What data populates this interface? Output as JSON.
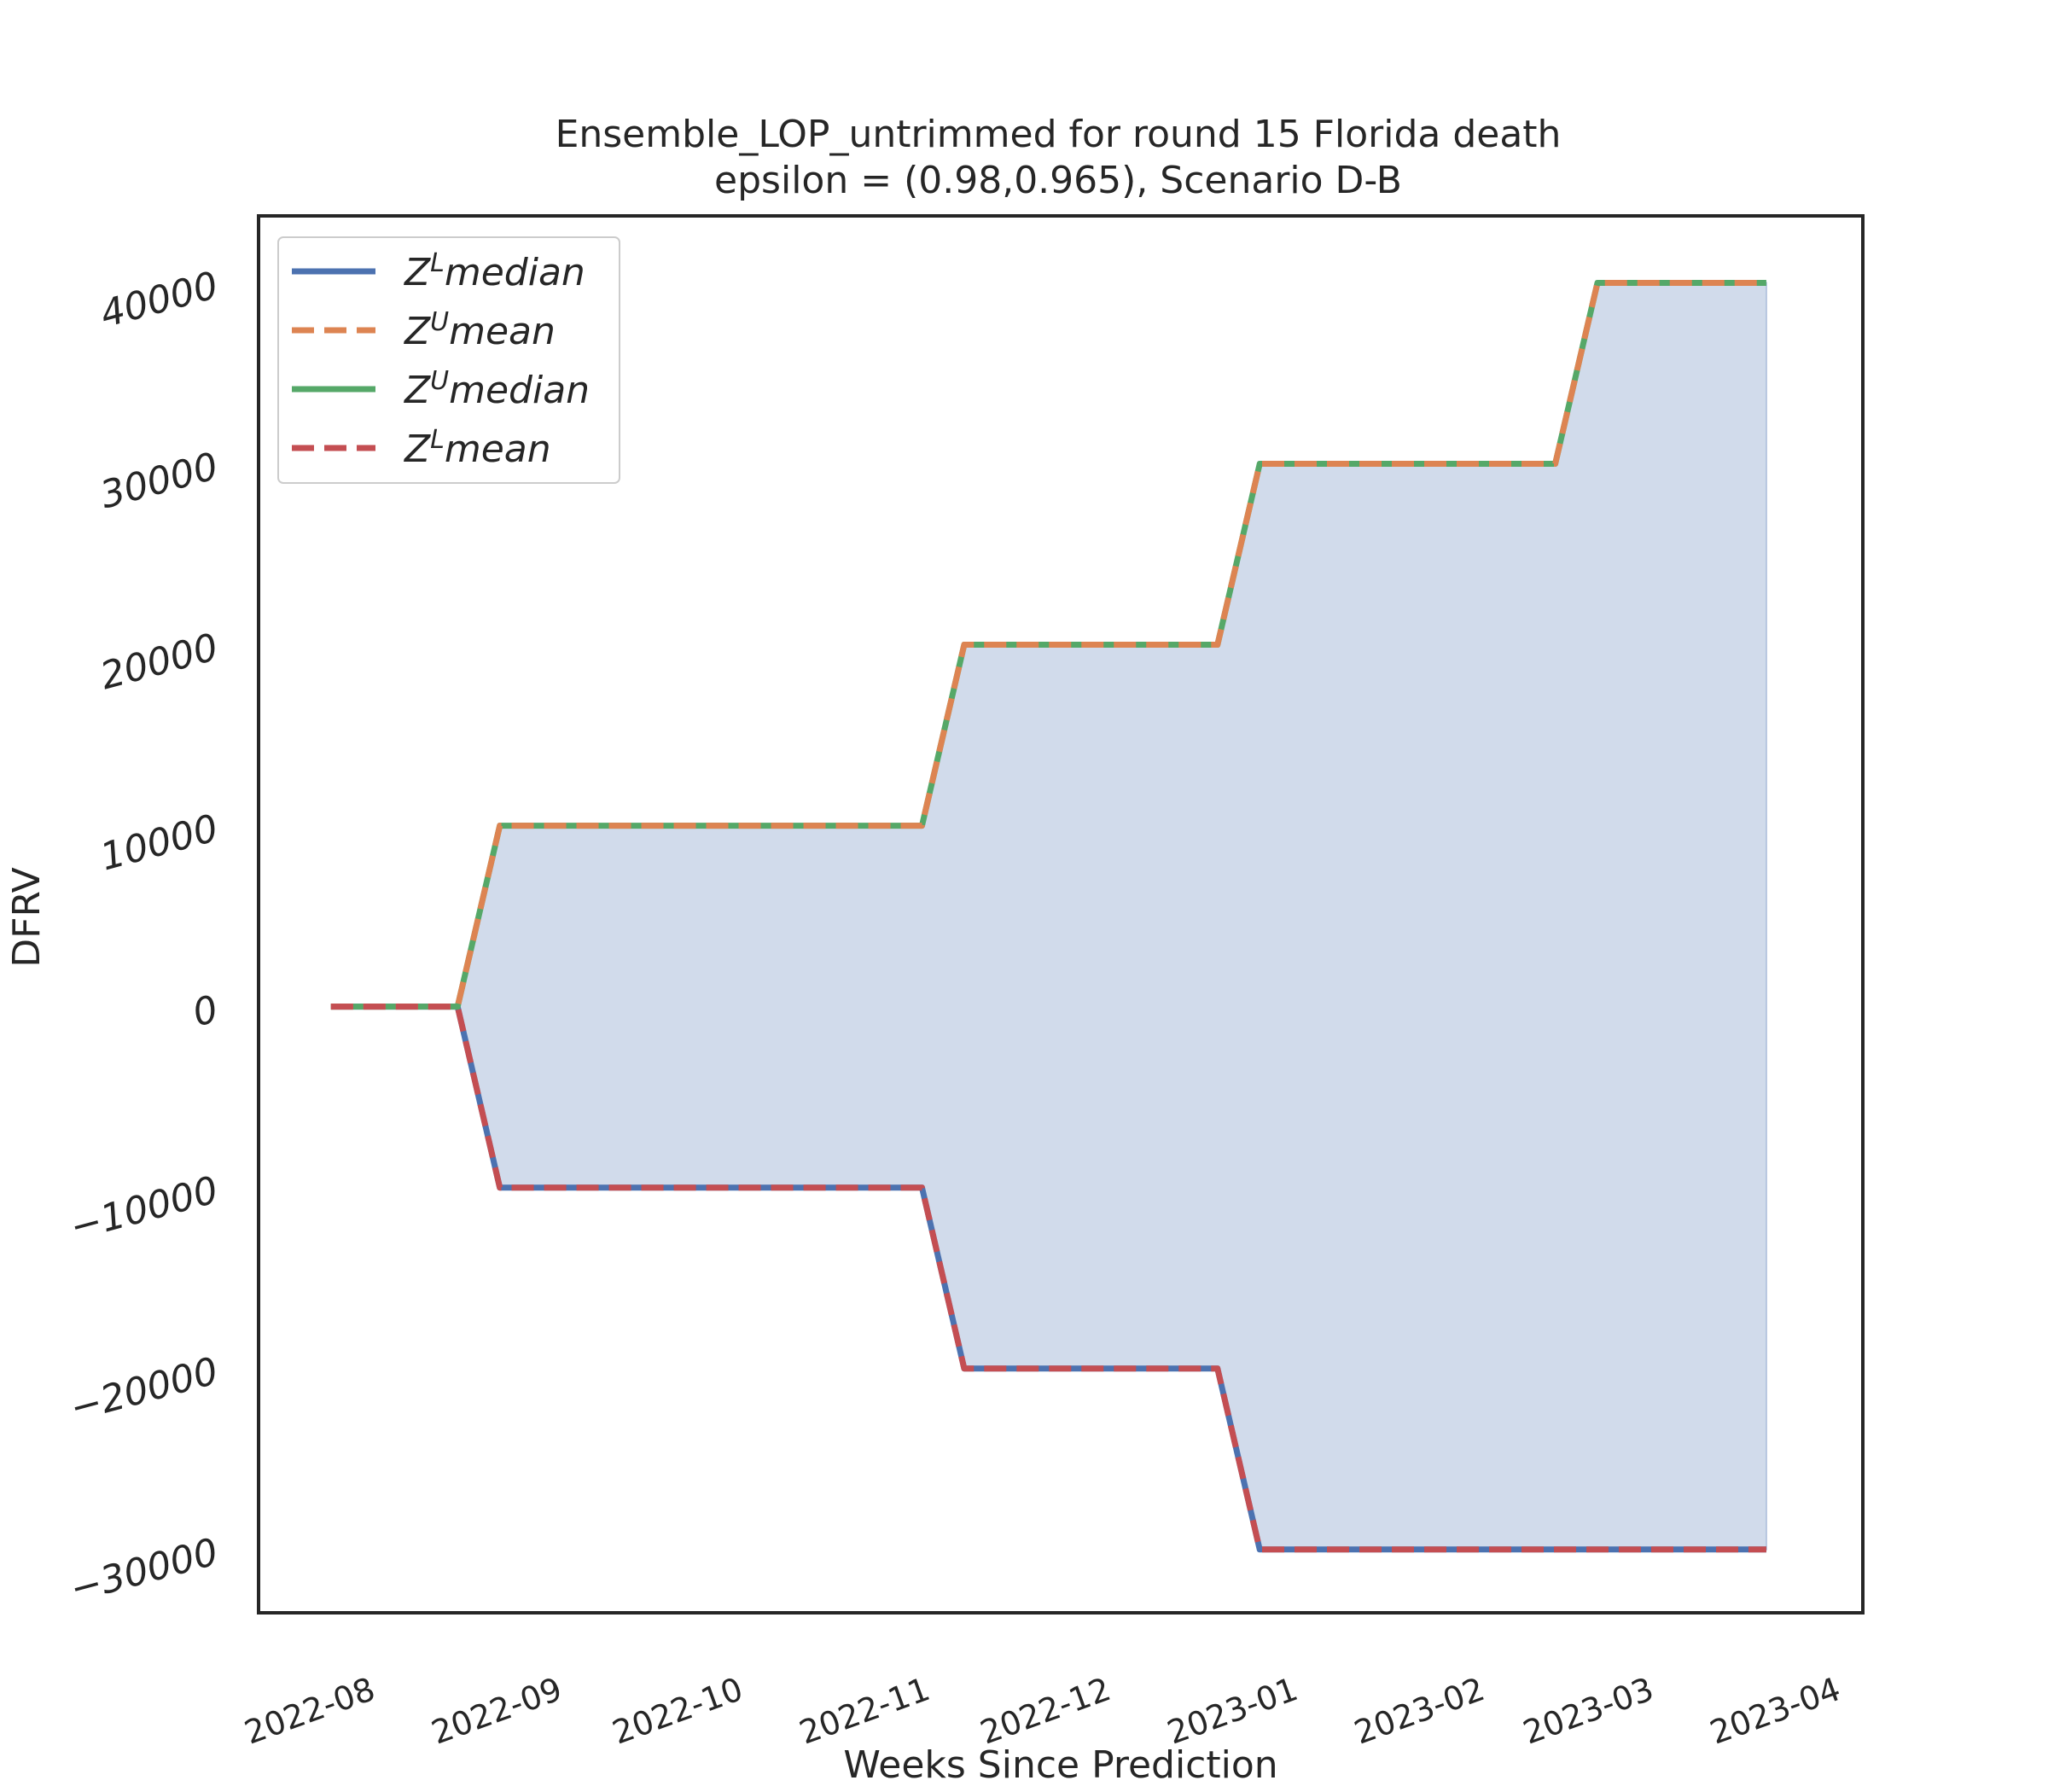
{
  "chart_data": {
    "type": "line",
    "title": "Ensemble_LOP_untrimmed for round 15 Florida  death",
    "subtitle": "epsilon = (0.98,0.965), Scenario D-B",
    "xlabel": "Weeks Since Prediction",
    "ylabel": "DFRV",
    "x_tick_labels": [
      "2022-08",
      "2022-09",
      "2022-10",
      "2022-11",
      "2022-12",
      "2023-01",
      "2023-02",
      "2023-03",
      "2023-04"
    ],
    "y_tick_labels": [
      "−30000",
      "−20000",
      "−10000",
      "0",
      "10000",
      "20000",
      "30000",
      "40000"
    ],
    "y_tick_values": [
      -30000,
      -20000,
      -10000,
      0,
      10000,
      20000,
      30000,
      40000
    ],
    "x_range": [
      "2022-07-18",
      "2023-04-10"
    ],
    "ylim": [
      -33500,
      43700
    ],
    "grid": false,
    "legend_position": "top-left",
    "fill_between": "Z^L median to Z^U median",
    "x": [
      "2022-07-30",
      "2022-08-20",
      "2022-08-27",
      "2022-11-05",
      "2022-11-12",
      "2022-12-24",
      "2022-12-31",
      "2023-02-18",
      "2023-02-25",
      "2023-03-25"
    ],
    "series": [
      {
        "name": "Z^L median",
        "legend_base": "Z",
        "legend_sup": "L",
        "legend_suffix": "median",
        "color": "#4c72b0",
        "dash": "solid",
        "values": [
          0,
          0,
          -10000,
          -10000,
          -20000,
          -20000,
          -30000,
          -30000,
          -30000,
          -30000
        ]
      },
      {
        "name": "Z^U mean",
        "legend_base": "Z",
        "legend_sup": "U",
        "legend_suffix": "mean",
        "color": "#dd8452",
        "dash": "dashed",
        "values": [
          0,
          0,
          10000,
          10000,
          20000,
          20000,
          30000,
          30000,
          40000,
          40000
        ]
      },
      {
        "name": "Z^U median",
        "legend_base": "Z",
        "legend_sup": "U",
        "legend_suffix": "median",
        "color": "#55a868",
        "dash": "solid",
        "values": [
          0,
          0,
          10000,
          10000,
          20000,
          20000,
          30000,
          30000,
          40000,
          40000
        ]
      },
      {
        "name": "Z^L mean",
        "legend_base": "Z",
        "legend_sup": "L",
        "legend_suffix": "mean",
        "color": "#c44e52",
        "dash": "dashed",
        "values": [
          0,
          0,
          -10000,
          -10000,
          -20000,
          -20000,
          -30000,
          -30000,
          -30000,
          -30000
        ]
      }
    ],
    "fill_color": "#d1dbeb"
  }
}
